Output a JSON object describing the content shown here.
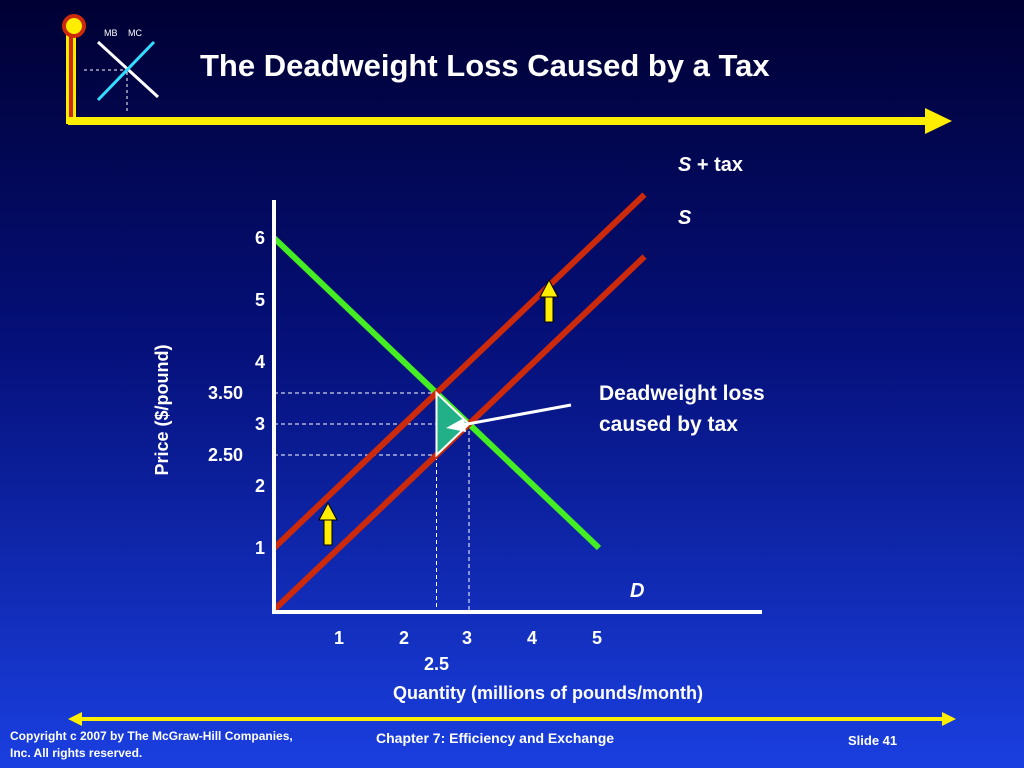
{
  "slide": {
    "title": "The Deadweight Loss Caused by a Tax",
    "logo": {
      "mb_label": "MB",
      "mc_label": "MC"
    },
    "footer": {
      "copyright": "Copyright c 2007 by The McGraw-Hill Companies, Inc.  All rights reserved.",
      "chapter": "Chapter 7: Efficiency and Exchange",
      "slide_number": "Slide 41"
    },
    "colors": {
      "background_top": "#000033",
      "background_bottom": "#1a3fe0",
      "accent_yellow": "#ffee00",
      "accent_red": "#cc2a0a",
      "demand_green": "#44ee22",
      "dwl_fill": "#22b088",
      "logo_cyan": "#33ddff"
    }
  },
  "chart_data": {
    "type": "line",
    "xlabel": "Quantity (millions of pounds/month)",
    "ylabel": "Price ($/pound)",
    "xlim": [
      0,
      6
    ],
    "ylim": [
      0,
      6.4
    ],
    "x_ticks": [
      "1",
      "2",
      "3",
      "4",
      "5"
    ],
    "x_extra_tick": "2.5",
    "y_ticks": [
      "1",
      "2",
      "3",
      "4",
      "5",
      "6"
    ],
    "y_extra_ticks": [
      "3.50",
      "2.50"
    ],
    "series": [
      {
        "name": "D",
        "color": "#44ee22",
        "x": [
          0,
          5
        ],
        "y": [
          6,
          1
        ]
      },
      {
        "name": "S",
        "color": "#cc2a0a",
        "x": [
          0,
          5.7
        ],
        "y": [
          0,
          5.7
        ]
      },
      {
        "name": "S + tax",
        "color": "#cc2a0a",
        "x": [
          0,
          5.7
        ],
        "y": [
          1,
          6.7
        ]
      }
    ],
    "equilibrium": {
      "without_tax": {
        "q": 3,
        "p": 3
      },
      "with_tax": {
        "q": 2.5,
        "p_buyers": 3.5,
        "p_sellers": 2.5
      }
    },
    "deadweight_loss_triangle": [
      [
        2.5,
        3.5
      ],
      [
        2.5,
        2.5
      ],
      [
        3,
        3
      ]
    ],
    "annotation": {
      "text_line1": "Deadweight loss",
      "text_line2": "caused by tax"
    },
    "label_s_tax_italic": "S",
    "label_s_tax_rest": " + tax",
    "label_s": "S",
    "label_d": "D"
  }
}
